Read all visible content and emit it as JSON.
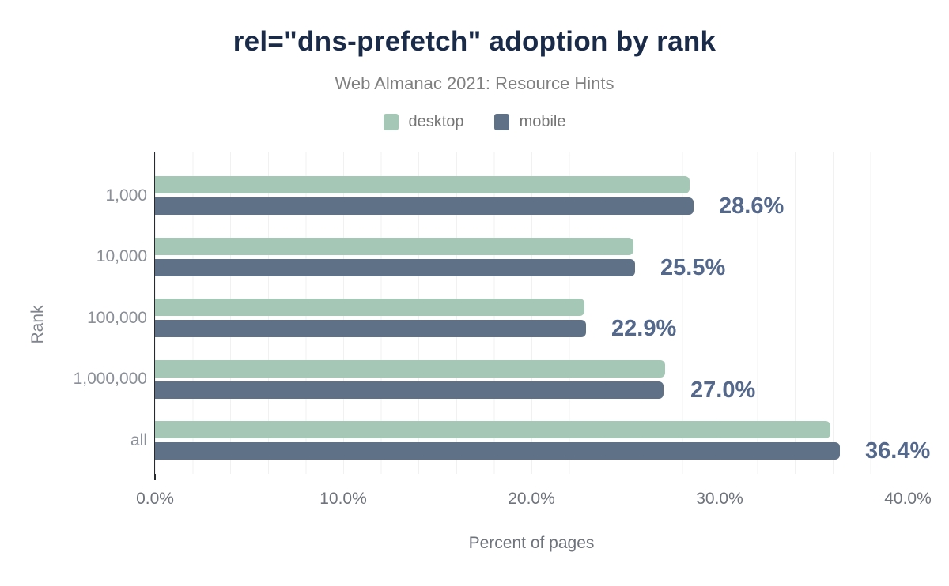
{
  "header": {
    "title": "rel=\"dns-prefetch\" adoption by rank",
    "subtitle": "Web Almanac 2021: Resource Hints"
  },
  "chart_data": {
    "type": "bar",
    "orientation": "horizontal",
    "title": "rel=\"dns-prefetch\" adoption by rank",
    "subtitle": "Web Almanac 2021: Resource Hints",
    "categories": [
      "1,000",
      "10,000",
      "100,000",
      "1,000,000",
      "all"
    ],
    "series": [
      {
        "name": "desktop",
        "color": "#a4c8b5",
        "values": [
          28.4,
          25.4,
          22.8,
          27.1,
          35.9
        ]
      },
      {
        "name": "mobile",
        "color": "#5f7186",
        "values": [
          28.6,
          25.5,
          22.9,
          27.0,
          36.4
        ]
      }
    ],
    "bar_labels": [
      "28.6%",
      "25.5%",
      "22.9%",
      "27.0%",
      "36.4%"
    ],
    "bar_label_source": "mobile values",
    "xlabel": "Percent of pages",
    "ylabel": "Rank",
    "xlim": [
      0,
      40
    ],
    "x_tick_values": [
      0,
      10,
      20,
      30,
      40
    ],
    "x_tick_labels": [
      "0.0%",
      "10.0%",
      "20.0%",
      "30.0%",
      "40.0%"
    ],
    "grid": {
      "vertical_spacing_pct": 2,
      "color": "#f1f1f1"
    },
    "legend_position": "top"
  },
  "colors": {
    "background": "#ffffff",
    "title": "#1a2b49",
    "subtitle": "#808080",
    "legend_text": "#757575",
    "axis_line": "#26292f",
    "tick_label": "#6e737c",
    "category_label": "#8a8f98",
    "bar_label": "#54688c",
    "desktop": "#a4c8b5",
    "mobile": "#5f7186"
  }
}
